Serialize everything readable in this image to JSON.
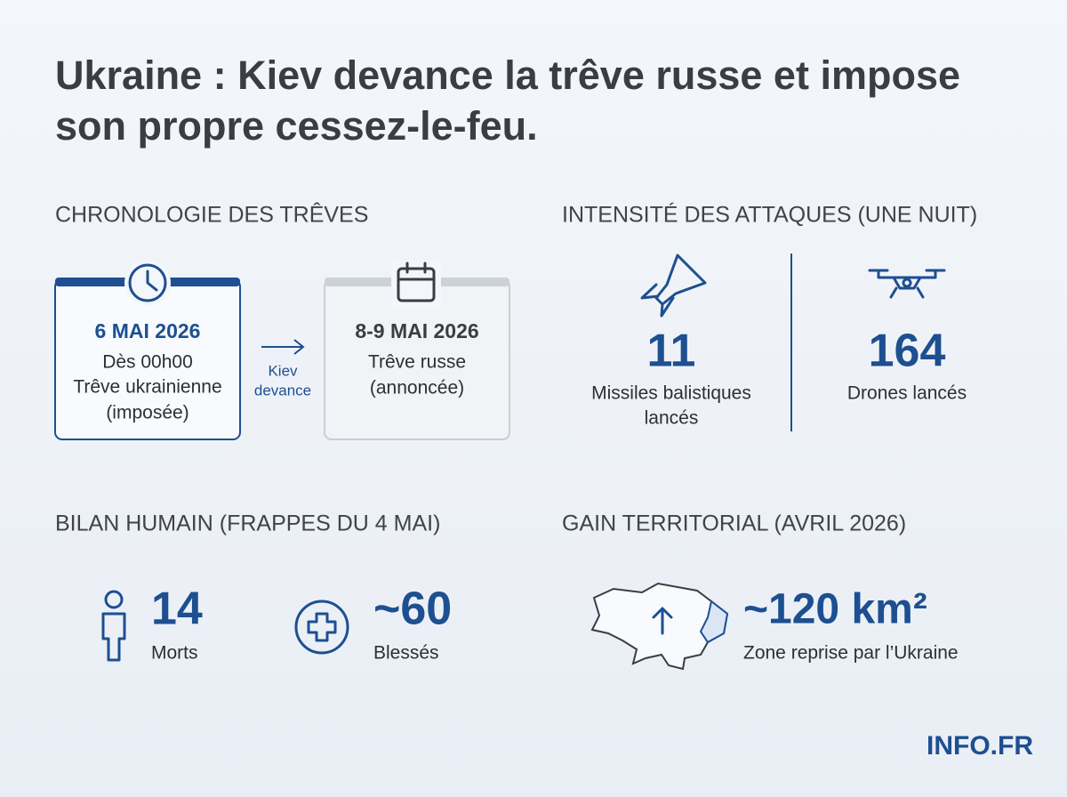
{
  "header": {
    "title": [
      "Ukraine : Kiev devance la trêve russe et impose",
      "son propre cessez-le-feu."
    ]
  },
  "timeline": {
    "heading": "CHRONOLOGIE DES TRÊVES",
    "events": [
      {
        "date": "6 MAI 2026",
        "lines": [
          "Dès 00h00",
          "Trêve ukrainienne",
          "(imposée)"
        ]
      },
      {
        "date": "8-9 MAI 2026",
        "lines": [
          "Trêve russe",
          "(annoncée)"
        ]
      }
    ],
    "connector": [
      "Kiev",
      "devance"
    ]
  },
  "attacks": {
    "heading": "INTENSITÉ DES ATTAQUES (UNE NUIT)",
    "stats": [
      {
        "value": 11,
        "label": [
          "Missiles balistiques",
          "lancés"
        ]
      },
      {
        "value": 164,
        "label": [
          "Drones lancés"
        ]
      }
    ]
  },
  "casualties": {
    "heading": "BILAN HUMAIN (FRAPPES DU 4 MAI)",
    "stats": [
      {
        "value": 14,
        "label": "Morts"
      },
      {
        "value": "~60",
        "label": "Blessés"
      }
    ]
  },
  "territory": {
    "heading": "GAIN TERRITORIAL (AVRIL 2026)",
    "value": "~120 km²",
    "label": "Zone reprise par l’Ukraine"
  },
  "footer": {
    "logo": "INFO.FR"
  }
}
